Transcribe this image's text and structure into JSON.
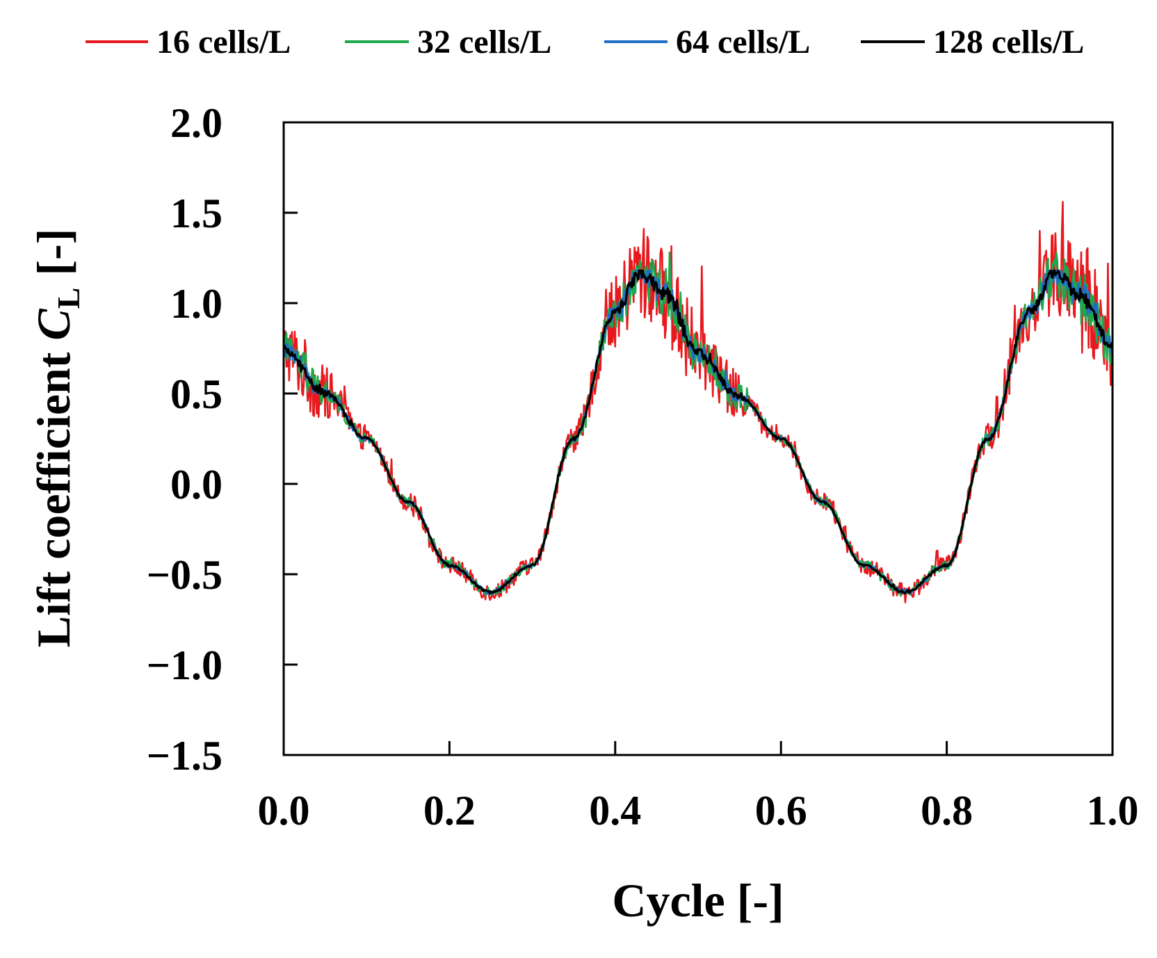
{
  "chart_data": {
    "type": "line",
    "title": "",
    "xlabel": "Cycle [-]",
    "ylabel": {
      "prefix": "Lift coefficient ",
      "symbol": "C",
      "subscript": "L",
      "suffix": " [-]"
    },
    "xlim": [
      0.0,
      1.0
    ],
    "ylim": [
      -1.5,
      2.0
    ],
    "xticks": [
      0.0,
      0.2,
      0.4,
      0.6,
      0.8,
      1.0
    ],
    "yticks": [
      -1.5,
      -1.0,
      -0.5,
      0.0,
      0.5,
      1.0,
      1.5,
      2.0
    ],
    "xtick_labels": [
      "0.0",
      "0.2",
      "0.4",
      "0.6",
      "0.8",
      "1.0"
    ],
    "ytick_labels": [
      "−1.5",
      "−1.0",
      "−0.5",
      "0.0",
      "0.5",
      "1.0",
      "1.5",
      "2.0"
    ],
    "grid": false,
    "legend_position": "top",
    "base_curve": {
      "x": [
        0.0,
        0.05,
        0.1,
        0.15,
        0.2,
        0.25,
        0.3,
        0.35,
        0.4,
        0.43,
        0.46,
        0.5,
        0.55,
        0.6,
        0.65,
        0.7,
        0.75,
        0.8,
        0.85,
        0.9,
        0.93,
        0.96,
        1.0
      ],
      "y": [
        0.74,
        0.5,
        0.25,
        -0.1,
        -0.45,
        -0.6,
        -0.45,
        0.25,
        0.95,
        1.17,
        1.05,
        0.72,
        0.48,
        0.25,
        -0.1,
        -0.45,
        -0.6,
        -0.45,
        0.25,
        0.95,
        1.17,
        1.05,
        0.76
      ]
    },
    "series": [
      {
        "name": "16 cells/L",
        "label": "16 cells/L",
        "color": "#e8191e",
        "noise_amplitude": 0.14,
        "peak_max": 1.56,
        "min": -0.68
      },
      {
        "name": "32 cells/L",
        "label": "32 cells/L",
        "color": "#1ea84e",
        "noise_amplitude": 0.07,
        "peak_max": 1.28,
        "min": -0.65
      },
      {
        "name": "64 cells/L",
        "label": "64 cells/L",
        "color": "#1f6fc4",
        "noise_amplitude": 0.035,
        "peak_max": 1.18,
        "min": -0.62
      },
      {
        "name": "128 cells/L",
        "label": "128 cells/L",
        "color": "#000000",
        "noise_amplitude": 0.02,
        "peak_max": 1.18,
        "min": -0.62
      }
    ]
  }
}
